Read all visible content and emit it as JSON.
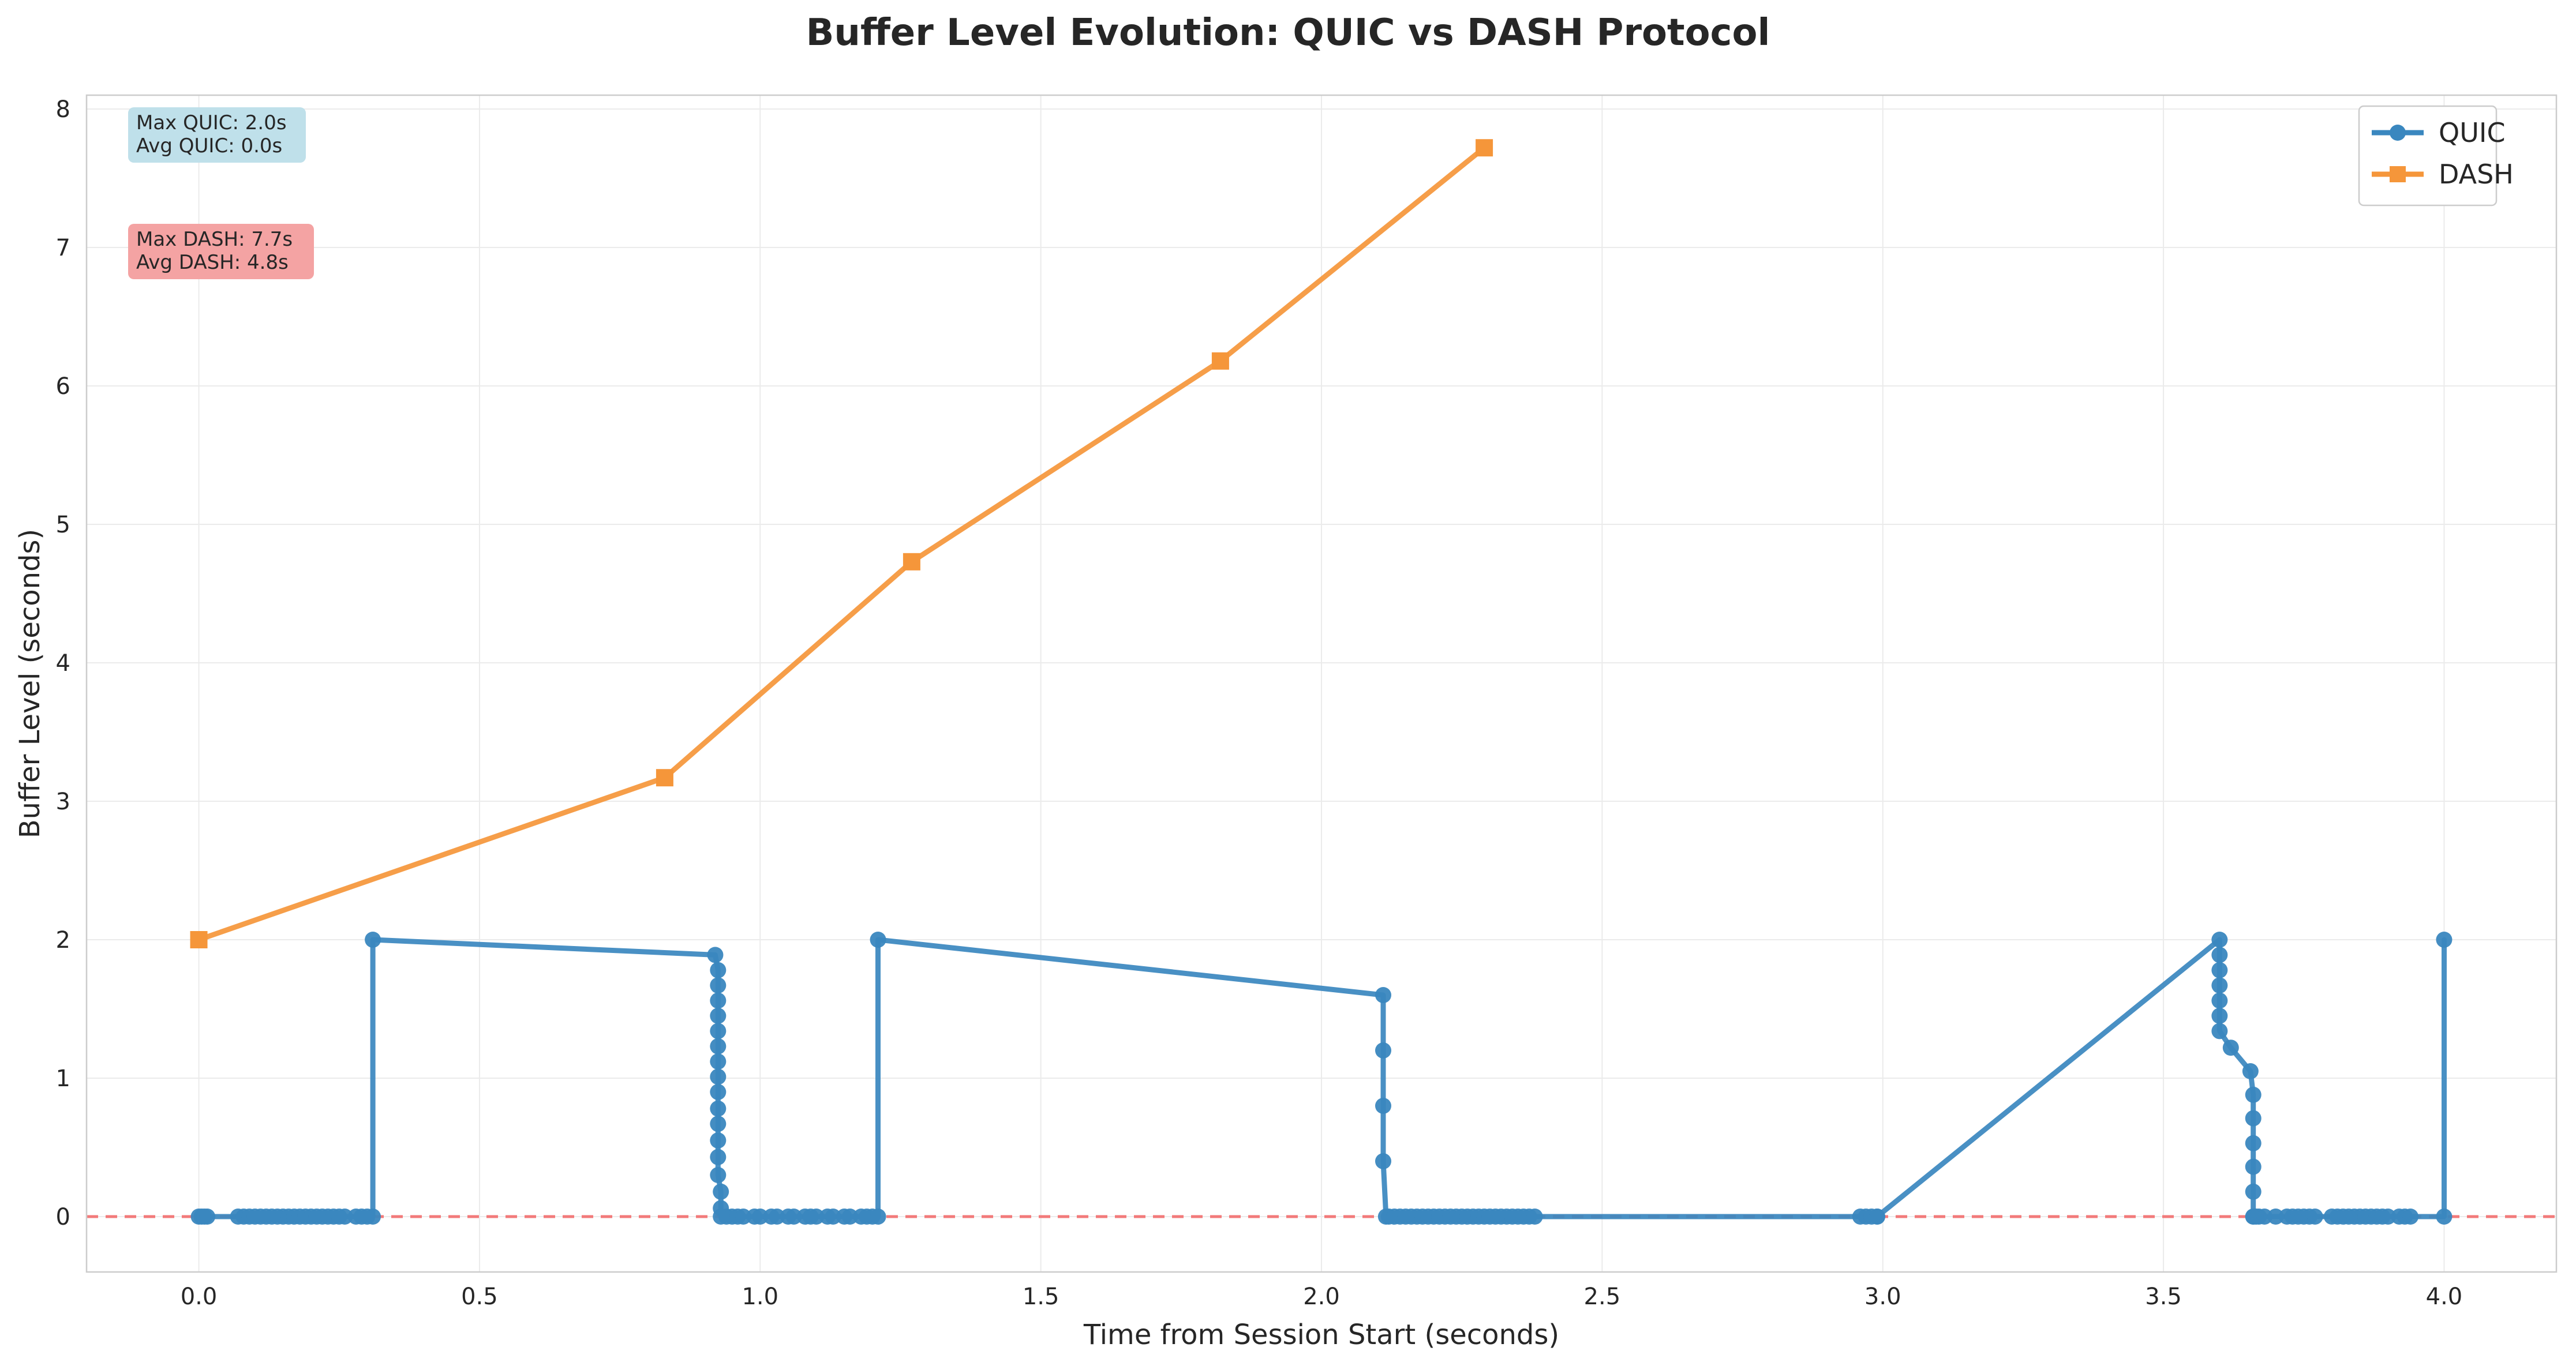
{
  "chart_data": {
    "type": "line",
    "title": "Buffer Level Evolution: QUIC vs DASH Protocol",
    "xlabel": "Time from Session Start (seconds)",
    "ylabel": "Buffer Level (seconds)",
    "xlim": [
      -0.2,
      4.2
    ],
    "ylim": [
      -0.4,
      8.1
    ],
    "x_ticks": [
      0.0,
      0.5,
      1.0,
      1.5,
      2.0,
      2.5,
      3.0,
      3.5,
      4.0
    ],
    "x_tick_labels": [
      "0.0",
      "0.5",
      "1.0",
      "1.5",
      "2.0",
      "2.5",
      "3.0",
      "3.5",
      "4.0"
    ],
    "y_ticks": [
      0,
      1,
      2,
      3,
      4,
      5,
      6,
      7,
      8
    ],
    "y_tick_labels": [
      "0",
      "1",
      "2",
      "3",
      "4",
      "5",
      "6",
      "7",
      "8"
    ],
    "grid": true,
    "legend_position": "top-right",
    "reference_line": {
      "y": 0,
      "style": "dashed",
      "color": "#f27a7a"
    },
    "annotations": [
      {
        "lines": [
          "Max QUIC: 2.0s",
          "Avg QUIC: 0.0s"
        ],
        "background": "#bfe0ea",
        "position": "top-left"
      },
      {
        "lines": [
          "Max DASH: 7.7s",
          "Avg DASH: 4.8s"
        ],
        "background": "#f4a3a3",
        "position": "top-left"
      }
    ],
    "series": [
      {
        "name": "QUIC",
        "color": "#3a87bf",
        "marker": "circle",
        "x": [
          0.0,
          0.005,
          0.01,
          0.015,
          0.07,
          0.08,
          0.09,
          0.1,
          0.11,
          0.12,
          0.13,
          0.14,
          0.15,
          0.16,
          0.17,
          0.18,
          0.19,
          0.2,
          0.21,
          0.22,
          0.23,
          0.24,
          0.25,
          0.26,
          0.28,
          0.29,
          0.3,
          0.31,
          0.31,
          0.92,
          0.925,
          0.925,
          0.925,
          0.925,
          0.925,
          0.925,
          0.925,
          0.925,
          0.925,
          0.925,
          0.925,
          0.925,
          0.925,
          0.925,
          0.93,
          0.93,
          0.93,
          0.94,
          0.95,
          0.96,
          0.97,
          0.99,
          1.0,
          1.02,
          1.03,
          1.05,
          1.06,
          1.08,
          1.09,
          1.1,
          1.12,
          1.13,
          1.15,
          1.16,
          1.18,
          1.19,
          1.2,
          1.21,
          1.21,
          2.11,
          2.11,
          2.11,
          2.11,
          2.115,
          2.12,
          2.13,
          2.14,
          2.15,
          2.16,
          2.17,
          2.18,
          2.19,
          2.2,
          2.21,
          2.22,
          2.23,
          2.24,
          2.25,
          2.26,
          2.27,
          2.28,
          2.29,
          2.3,
          2.31,
          2.32,
          2.33,
          2.34,
          2.35,
          2.36,
          2.37,
          2.38,
          2.96,
          2.97,
          2.98,
          2.99,
          2.99,
          3.6,
          3.6,
          3.6,
          3.6,
          3.6,
          3.6,
          3.6,
          3.62,
          3.655,
          3.66,
          3.66,
          3.66,
          3.66,
          3.66,
          3.66,
          3.66,
          3.665,
          3.67,
          3.68,
          3.7,
          3.72,
          3.73,
          3.74,
          3.75,
          3.76,
          3.77,
          3.8,
          3.81,
          3.82,
          3.83,
          3.84,
          3.85,
          3.86,
          3.87,
          3.88,
          3.89,
          3.9,
          3.92,
          3.93,
          3.94,
          4.0,
          4.0
        ],
        "y": [
          0,
          0,
          0,
          0,
          0,
          0,
          0,
          0,
          0,
          0,
          0,
          0,
          0,
          0,
          0,
          0,
          0,
          0,
          0,
          0,
          0,
          0,
          0,
          0,
          0,
          0,
          0,
          0,
          2.0,
          1.89,
          1.78,
          1.67,
          1.56,
          1.45,
          1.34,
          1.23,
          1.12,
          1.01,
          0.9,
          0.78,
          0.67,
          0.55,
          0.43,
          0.3,
          0.18,
          0.06,
          0,
          0,
          0,
          0,
          0,
          0,
          0,
          0,
          0,
          0,
          0,
          0,
          0,
          0,
          0,
          0,
          0,
          0,
          0,
          0,
          0,
          0,
          2.0,
          1.6,
          1.2,
          0.8,
          0.4,
          0,
          0,
          0,
          0,
          0,
          0,
          0,
          0,
          0,
          0,
          0,
          0,
          0,
          0,
          0,
          0,
          0,
          0,
          0,
          0,
          0,
          0,
          0,
          0,
          0,
          0,
          0,
          0,
          0,
          0,
          0,
          0,
          0,
          2.0,
          1.89,
          1.78,
          1.67,
          1.56,
          1.45,
          1.34,
          1.22,
          1.05,
          0.88,
          0.71,
          0.53,
          0.36,
          0.18,
          0,
          0,
          0,
          0,
          0,
          0,
          0,
          0,
          0,
          0,
          0,
          0,
          0,
          0,
          0,
          0,
          0,
          0,
          0,
          0,
          0,
          0,
          0,
          0,
          0,
          0,
          0,
          2.0
        ]
      },
      {
        "name": "DASH",
        "color": "#f5963a",
        "marker": "square",
        "x": [
          0.0,
          0.83,
          1.27,
          1.82,
          2.29
        ],
        "y": [
          2.0,
          3.17,
          4.73,
          6.18,
          7.72
        ]
      }
    ]
  }
}
